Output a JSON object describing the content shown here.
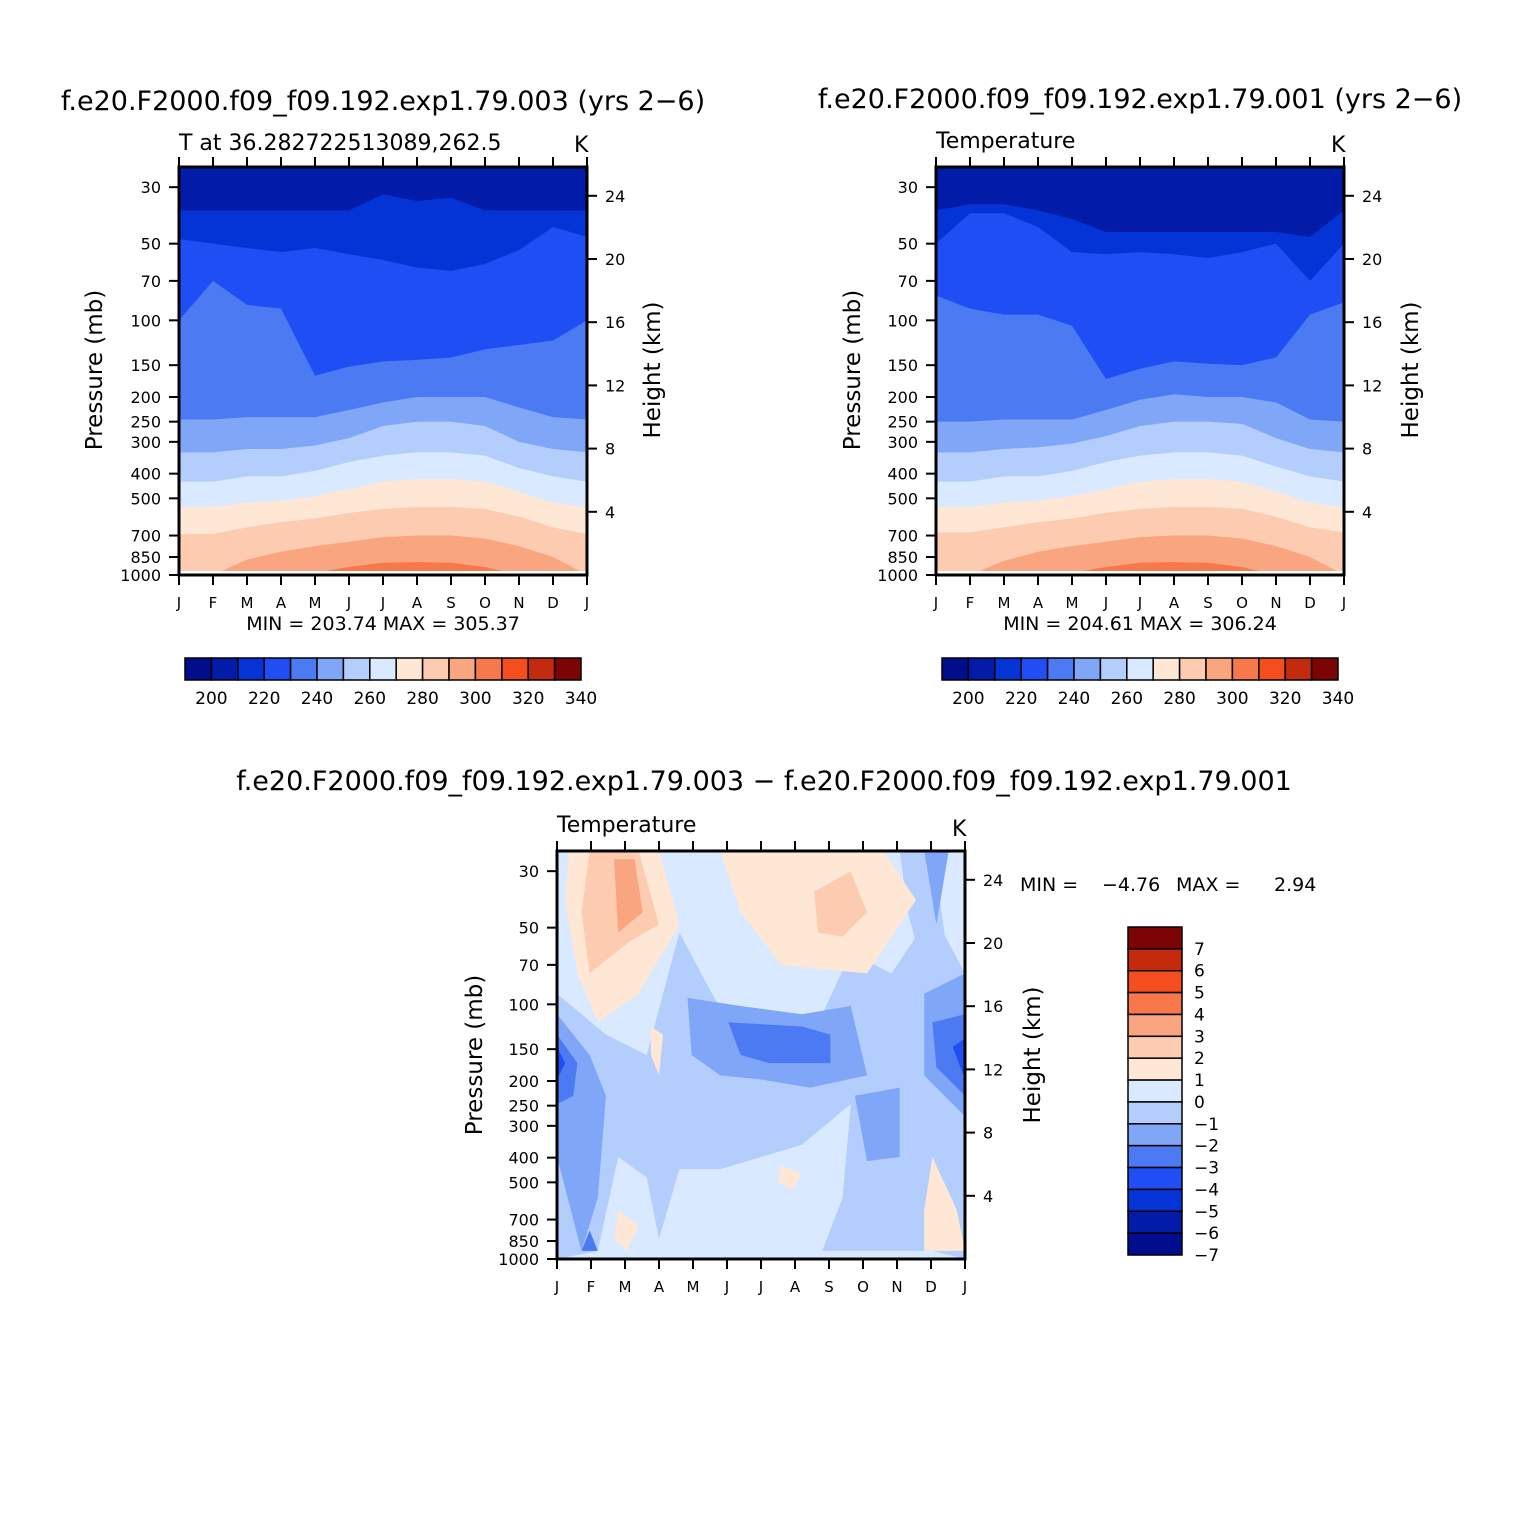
{
  "panels": [
    {
      "key": "top-left",
      "title": "f.e20.F2000.f09_f09.192.exp1.79.003 (yrs 2−6)",
      "subtitle_left": "T at 36.282722513089,262.5",
      "subtitle_right": "K",
      "ylabel": "Pressure (mb)",
      "ylabel_right": "Height (km)",
      "minmax": "MIN = 203.74 MAX = 305.37"
    },
    {
      "key": "top-right",
      "title": "f.e20.F2000.f09_f09.192.exp1.79.001 (yrs 2−6)",
      "subtitle_left": "Temperature",
      "subtitle_right": "K",
      "ylabel": "Pressure (mb)",
      "ylabel_right": "Height (km)",
      "minmax": "MIN = 204.61 MAX = 306.24"
    },
    {
      "key": "bottom",
      "title": "f.e20.F2000.f09_f09.192.exp1.79.003 − f.e20.F2000.f09_f09.192.exp1.79.001",
      "subtitle_left": "Temperature",
      "subtitle_right": "K",
      "ylabel": "Pressure (mb)",
      "ylabel_right": "Height (km)",
      "minmax_min": "MIN =",
      "minmax_min_val": "−4.76",
      "minmax_max": "MAX =",
      "minmax_max_val": "2.94"
    }
  ],
  "chart_data": [
    {
      "type": "heatmap",
      "panel": "top-left",
      "x_categories": [
        "J",
        "F",
        "M",
        "A",
        "M",
        "J",
        "J",
        "A",
        "S",
        "O",
        "N",
        "D",
        "J"
      ],
      "x_ticks_plain": [
        "J",
        "F",
        "M",
        "A",
        "M",
        "J",
        "J",
        "A",
        "S",
        "O",
        "N",
        "D",
        "J"
      ],
      "y_pressure_levels_mb": [
        30,
        50,
        70,
        100,
        150,
        200,
        250,
        300,
        400,
        500,
        700,
        850,
        1000
      ],
      "y_height_km": [
        4,
        8,
        12,
        16,
        20,
        24
      ],
      "band_levels": [
        210,
        220,
        230,
        240,
        250,
        260,
        270,
        280,
        290,
        300
      ],
      "band_boundaries_mb": [
        [
          37,
          37,
          37,
          37,
          37,
          37,
          32,
          34,
          33,
          37,
          37,
          37,
          37
        ],
        [
          48,
          50,
          52,
          54,
          52,
          55,
          58,
          62,
          64,
          60,
          53,
          43,
          47
        ],
        [
          100,
          70,
          87,
          90,
          165,
          152,
          145,
          143,
          140,
          130,
          125,
          120,
          100
        ],
        [
          245,
          245,
          240,
          240,
          240,
          225,
          210,
          200,
          200,
          200,
          220,
          240,
          245
        ],
        [
          330,
          330,
          320,
          320,
          310,
          290,
          260,
          250,
          250,
          260,
          300,
          320,
          330
        ],
        [
          430,
          430,
          410,
          410,
          390,
          360,
          340,
          330,
          330,
          340,
          380,
          410,
          430
        ],
        [
          540,
          540,
          520,
          510,
          490,
          460,
          430,
          420,
          420,
          430,
          470,
          520,
          540
        ],
        [
          690,
          690,
          650,
          620,
          600,
          570,
          550,
          540,
          540,
          550,
          590,
          650,
          690
        ],
        [
          1000,
          1000,
          870,
          810,
          770,
          740,
          710,
          700,
          700,
          720,
          770,
          850,
          1000
        ],
        [
          1000,
          1000,
          1000,
          1000,
          980,
          930,
          895,
          890,
          895,
          930,
          1000,
          1000,
          1000
        ],
        [
          1000,
          1000,
          1000,
          1000,
          1000,
          1000,
          1000,
          990,
          1000,
          1000,
          1000,
          1000,
          1000
        ]
      ],
      "colorbar_labels": [
        "200",
        "220",
        "240",
        "260",
        "280",
        "300",
        "320",
        "340"
      ]
    },
    {
      "type": "heatmap",
      "panel": "top-right",
      "x_categories": [
        "J",
        "F",
        "M",
        "A",
        "M",
        "J",
        "J",
        "A",
        "S",
        "O",
        "N",
        "D",
        "J"
      ],
      "x_ticks_plain": [
        "J",
        "F",
        "M",
        "A",
        "M",
        "J",
        "J",
        "A",
        "S",
        "O",
        "N",
        "D",
        "J"
      ],
      "y_pressure_levels_mb": [
        30,
        50,
        70,
        100,
        150,
        200,
        250,
        300,
        400,
        500,
        700,
        850,
        1000
      ],
      "y_height_km": [
        4,
        8,
        12,
        16,
        20,
        24
      ],
      "band_levels": [
        210,
        220,
        230,
        240,
        250,
        260,
        270,
        280,
        290,
        300
      ],
      "band_boundaries_mb": [
        [
          37,
          35,
          35,
          37,
          40,
          45,
          45,
          45,
          45,
          45,
          45,
          47,
          37
        ],
        [
          50,
          38,
          38,
          43,
          54,
          55,
          54,
          55,
          57,
          54,
          50,
          70,
          50
        ],
        [
          80,
          90,
          95,
          95,
          105,
          170,
          155,
          145,
          148,
          150,
          140,
          95,
          85
        ],
        [
          250,
          250,
          245,
          245,
          245,
          225,
          205,
          195,
          200,
          200,
          210,
          245,
          250
        ],
        [
          330,
          330,
          320,
          315,
          305,
          285,
          260,
          250,
          250,
          255,
          290,
          320,
          330
        ],
        [
          430,
          430,
          410,
          410,
          390,
          360,
          340,
          330,
          330,
          340,
          375,
          410,
          430
        ],
        [
          540,
          540,
          520,
          510,
          490,
          460,
          430,
          420,
          420,
          430,
          470,
          520,
          540
        ],
        [
          680,
          680,
          650,
          620,
          600,
          570,
          550,
          540,
          540,
          550,
          590,
          650,
          680
        ],
        [
          1000,
          1000,
          880,
          810,
          770,
          740,
          710,
          700,
          700,
          720,
          770,
          850,
          1000
        ],
        [
          1000,
          1000,
          1000,
          1000,
          980,
          930,
          895,
          890,
          895,
          930,
          1000,
          1000,
          1000
        ],
        [
          1000,
          1000,
          1000,
          1000,
          1000,
          1000,
          1000,
          985,
          1000,
          1000,
          1000,
          1000,
          1000
        ]
      ],
      "colorbar_labels": [
        "200",
        "220",
        "240",
        "260",
        "280",
        "300",
        "320",
        "340"
      ]
    },
    {
      "type": "heatmap",
      "panel": "bottom",
      "x_categories": [
        "J",
        "F",
        "M",
        "A",
        "M",
        "J",
        "J",
        "A",
        "S",
        "O",
        "N",
        "D",
        "J"
      ],
      "x_ticks_plain": [
        "J",
        "F",
        "M",
        "A",
        "M",
        "J",
        "J",
        "A",
        "S",
        "O",
        "N",
        "D",
        "J"
      ],
      "y_pressure_levels_mb": [
        30,
        50,
        70,
        100,
        150,
        200,
        250,
        300,
        400,
        500,
        700,
        850,
        1000
      ],
      "y_height_km": [
        4,
        8,
        12,
        16,
        20,
        24
      ],
      "value_range": [
        -4.76,
        2.94
      ],
      "description_values_K": {
        "positive_stratosphere_F_M": 2,
        "positive_stratosphere_Jun_Oct": 1,
        "negative_uppertrop_Jul": -4,
        "negative_uppertrop_Jan_Dec": -4,
        "low_levels_mostly": -1
      },
      "colorbar_labels": [
        "7",
        "6",
        "5",
        "4",
        "3",
        "2",
        "1",
        "0",
        "−1",
        "−2",
        "−3",
        "−4",
        "−5",
        "−6",
        "−7"
      ]
    }
  ],
  "colors": {
    "seq": [
      "#000d8c",
      "#021ba8",
      "#0534d6",
      "#1f4ef5",
      "#4c7af2",
      "#80a6f7",
      "#b3cdfc",
      "#d9e9ff",
      "#fee7d5",
      "#fdcbb0",
      "#f9a580",
      "#f7784b",
      "#f44d1e",
      "#c42b0d",
      "#7d0404"
    ],
    "div": [
      "#000d8c",
      "#021ba8",
      "#0534d6",
      "#1f4ef5",
      "#4c7af2",
      "#80a6f7",
      "#b3cdfc",
      "#d9e9ff",
      "#fee7d5",
      "#fdcbb0",
      "#f9a580",
      "#f7784b",
      "#f44d1e",
      "#c42b0d",
      "#7d0404"
    ]
  }
}
